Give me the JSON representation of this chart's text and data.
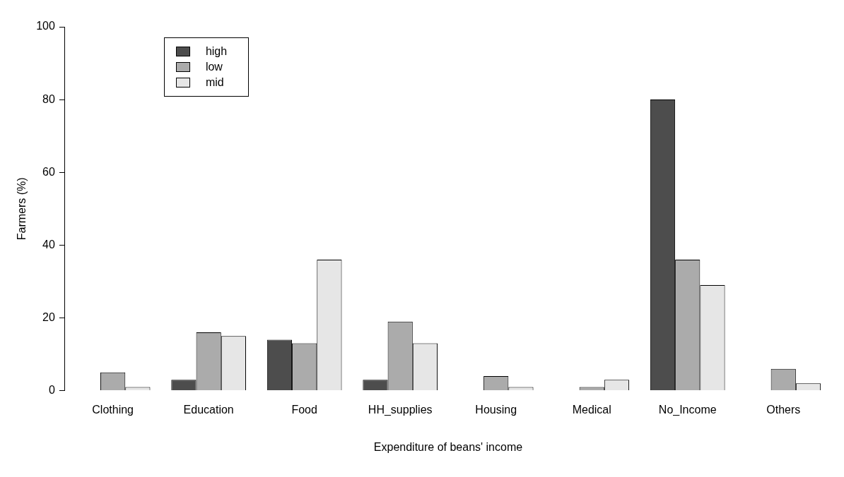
{
  "chart_data": {
    "type": "bar",
    "xlabel": "Expenditure of beans' income",
    "ylabel": "Farmers (%)",
    "categories": [
      "Clothing",
      "Education",
      "Food",
      "HH_supplies",
      "Housing",
      "Medical",
      "No_Income",
      "Others"
    ],
    "series": [
      {
        "name": "high",
        "color": "#4d4d4d",
        "values": [
          0,
          3,
          14,
          3,
          0,
          0,
          80,
          0
        ]
      },
      {
        "name": "low",
        "color": "#ababab",
        "values": [
          5,
          16,
          13,
          19,
          4,
          1,
          36,
          6
        ]
      },
      {
        "name": "mid",
        "color": "#e6e6e6",
        "values": [
          1,
          15,
          36,
          13,
          1,
          3,
          29,
          2
        ]
      }
    ],
    "ylim": [
      0,
      100
    ],
    "yticks": [
      0,
      20,
      40,
      60,
      80,
      100
    ],
    "grid": false,
    "legend": "top left"
  }
}
